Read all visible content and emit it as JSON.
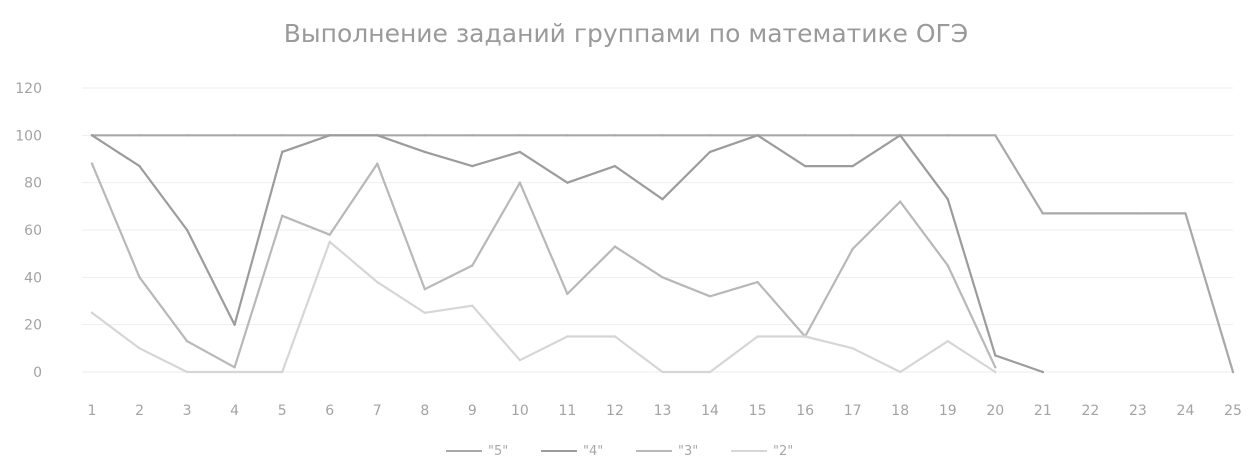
{
  "chart_data": {
    "type": "line",
    "title": "Выполнение заданий группами по математике ОГЭ",
    "xlabel": "",
    "ylabel": "",
    "categories": [
      "1",
      "2",
      "3",
      "4",
      "5",
      "6",
      "7",
      "8",
      "9",
      "10",
      "11",
      "12",
      "13",
      "14",
      "15",
      "16",
      "17",
      "18",
      "19",
      "20",
      "21",
      "22",
      "23",
      "24",
      "25"
    ],
    "ylim": [
      0,
      120
    ],
    "yticks": [
      "0",
      "20",
      "40",
      "60",
      "80",
      "100",
      "120"
    ],
    "grid": "off",
    "legend_position": "bottom",
    "series": [
      {
        "name": "\"5\"",
        "color": "#a8a8a8",
        "values": [
          100,
          100,
          100,
          100,
          100,
          100,
          100,
          100,
          100,
          100,
          100,
          100,
          100,
          100,
          100,
          100,
          100,
          100,
          100,
          100,
          67,
          67,
          67,
          67,
          0
        ]
      },
      {
        "name": "\"4\"",
        "color": "#9c9c9c",
        "values": [
          100,
          87,
          60,
          20,
          93,
          100,
          100,
          93,
          87,
          93,
          80,
          87,
          73,
          93,
          100,
          87,
          87,
          100,
          73,
          7,
          0,
          null,
          null,
          null,
          null
        ]
      },
      {
        "name": "\"3\"",
        "color": "#b8b8b8",
        "values": [
          88,
          40,
          13,
          2,
          66,
          58,
          88,
          35,
          45,
          80,
          33,
          53,
          40,
          32,
          38,
          15,
          52,
          72,
          45,
          2,
          null,
          null,
          null,
          null,
          null
        ]
      },
      {
        "name": "\"2\"",
        "color": "#d6d6d6",
        "values": [
          25,
          10,
          0,
          0,
          0,
          55,
          38,
          25,
          28,
          5,
          15,
          15,
          0,
          0,
          15,
          15,
          10,
          0,
          13,
          0,
          null,
          null,
          null,
          null,
          null
        ]
      }
    ]
  }
}
